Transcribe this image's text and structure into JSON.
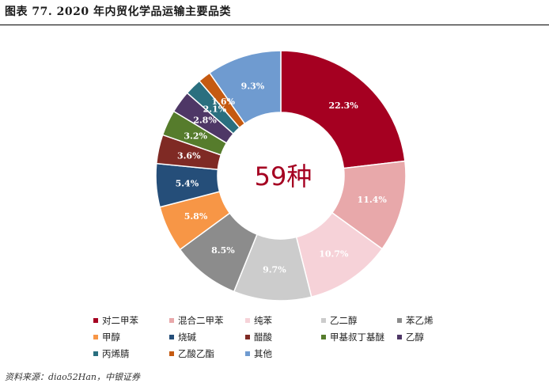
{
  "header": {
    "title": "图表 77. 2020 年内贸化学品运输主要品类"
  },
  "center_label": "59种",
  "source": "资料来源：diao52Han，中银证券",
  "chart_data": {
    "type": "pie",
    "variant": "donut",
    "title": "图表 77. 2020 年内贸化学品运输主要品类",
    "center_text": "59种",
    "unit": "%",
    "legend_position": "bottom",
    "categories": [
      "对二甲苯",
      "混合二甲苯",
      "纯苯",
      "乙二醇",
      "苯乙烯",
      "甲醇",
      "烧碱",
      "醋酸",
      "甲基叔丁基醚",
      "乙醇",
      "丙烯腈",
      "乙酸乙酯",
      "其他"
    ],
    "values": [
      22.3,
      11.4,
      10.7,
      9.7,
      8.5,
      5.8,
      5.4,
      3.6,
      3.2,
      2.8,
      2.1,
      1.6,
      9.3
    ],
    "data_labels": [
      "22.3%",
      "11.4%",
      "10.7%",
      "9.7%",
      "8.5%",
      "5.8%",
      "5.4%",
      "3.6%",
      "3.2%",
      "2.8%",
      "2.1%",
      "1.6%",
      "9.3%"
    ],
    "colors": [
      "#a50021",
      "#e8a8aa",
      "#f6d2d8",
      "#cccccc",
      "#8c8c8c",
      "#f79646",
      "#254e79",
      "#7f2a24",
      "#567c2c",
      "#4e3766",
      "#2a6f7f",
      "#c55a11",
      "#6f9bd0"
    ]
  }
}
